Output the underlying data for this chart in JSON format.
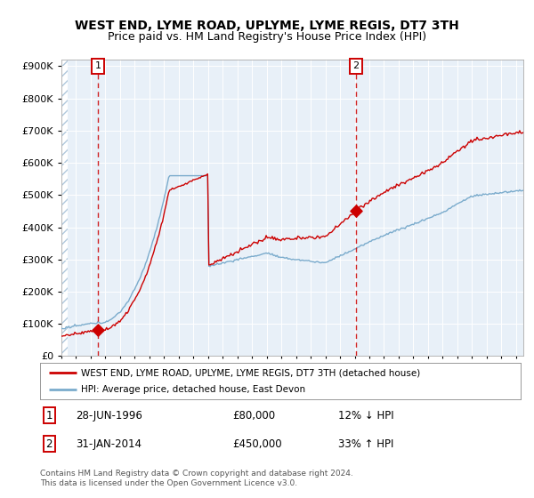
{
  "title": "WEST END, LYME ROAD, UPLYME, LYME REGIS, DT7 3TH",
  "subtitle": "Price paid vs. HM Land Registry's House Price Index (HPI)",
  "ylim": [
    0,
    900000
  ],
  "xlim_start": 1994.0,
  "xlim_end": 2025.5,
  "plot_bg": "#e8f0f8",
  "sale1": {
    "date_num": 1996.49,
    "price": 80000,
    "label": "1"
  },
  "sale2": {
    "date_num": 2014.08,
    "price": 450000,
    "label": "2"
  },
  "legend_line1": "WEST END, LYME ROAD, UPLYME, LYME REGIS, DT7 3TH (detached house)",
  "legend_line2": "HPI: Average price, detached house, East Devon",
  "annotation1_date": "28-JUN-1996",
  "annotation1_price": "£80,000",
  "annotation1_hpi": "12% ↓ HPI",
  "annotation2_date": "31-JAN-2014",
  "annotation2_price": "£450,000",
  "annotation2_hpi": "33% ↑ HPI",
  "footer": "Contains HM Land Registry data © Crown copyright and database right 2024.\nThis data is licensed under the Open Government Licence v3.0.",
  "title_fontsize": 10,
  "subtitle_fontsize": 9,
  "red_line_color": "#cc0000",
  "blue_line_color": "#7aabcc"
}
